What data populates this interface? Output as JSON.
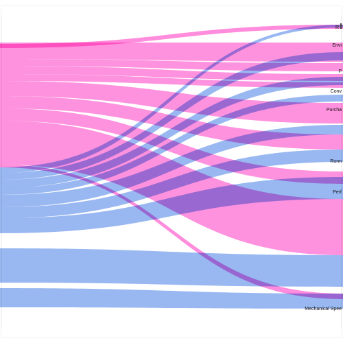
{
  "colors": {
    "pink": "#ff7fd8",
    "blue": "#7fa6ee",
    "frame_border": "#e6e6e6",
    "node_bar": "#444444"
  },
  "diagram": {
    "type": "sankey",
    "targets": [
      "R",
      "Envi",
      "P",
      "Conv",
      "Purcha",
      "Runn",
      "Perf",
      "Mechanical Spee"
    ]
  }
}
